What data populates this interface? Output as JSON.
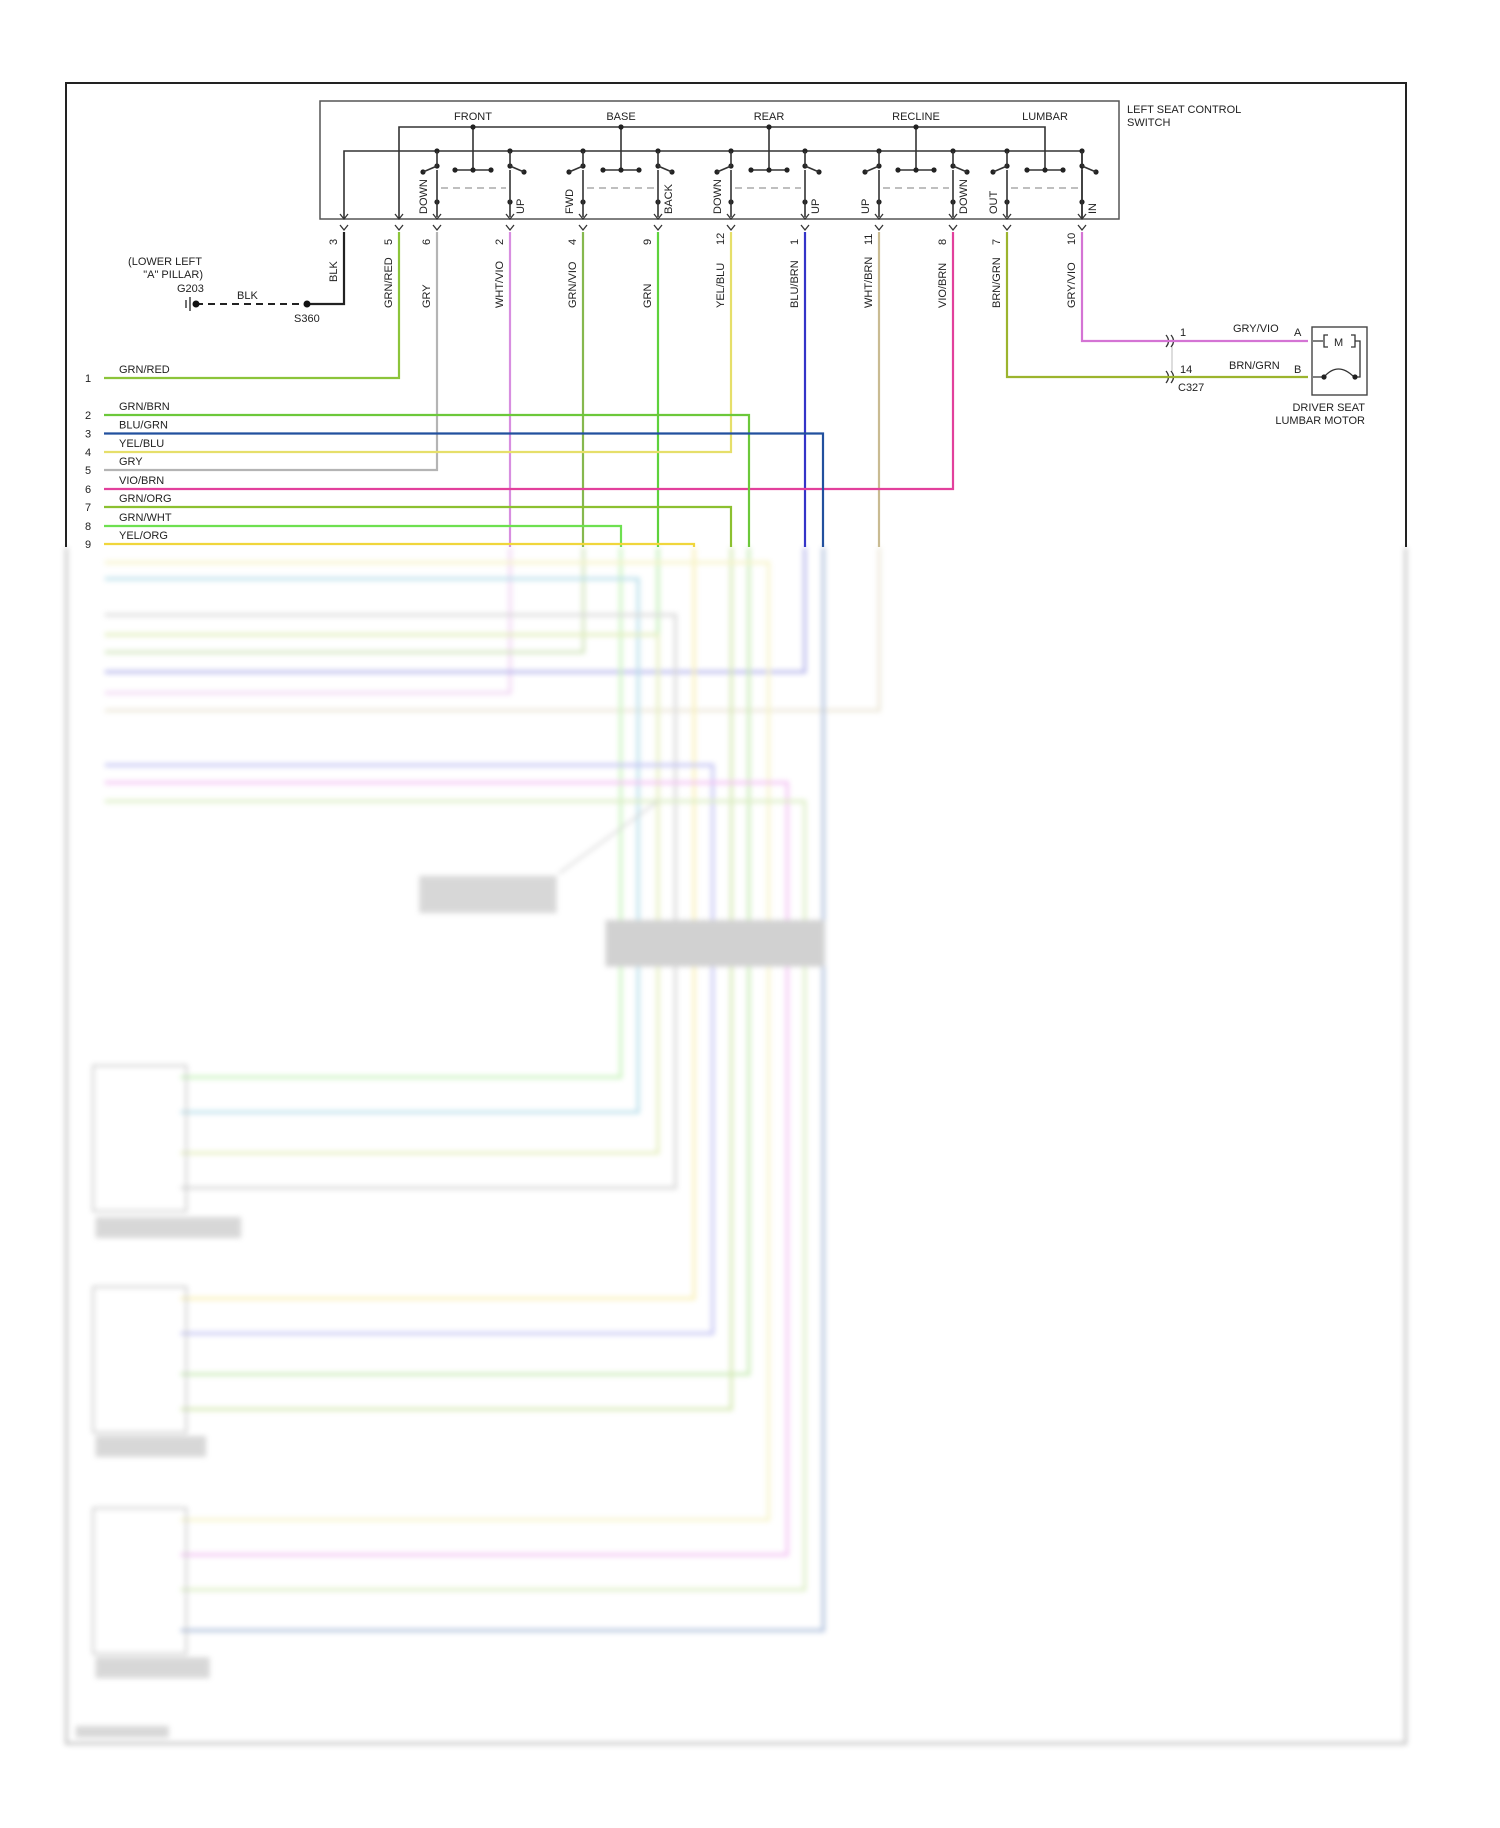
{
  "switch": {
    "title_line1": "LEFT SEAT CONTROL",
    "title_line2": "SWITCH",
    "sections": [
      "FRONT",
      "BASE",
      "REAR",
      "RECLINE",
      "LUMBAR"
    ],
    "directions": [
      "DOWN",
      "UP",
      "FWD",
      "BACK",
      "DOWN",
      "UP",
      "UP",
      "DOWN",
      "OUT",
      "IN"
    ]
  },
  "pins": [
    {
      "pin": "3",
      "wire": "BLK",
      "color": "#222222"
    },
    {
      "pin": "5",
      "wire": "GRN/RED",
      "color": "#8cc43a"
    },
    {
      "pin": "6",
      "wire": "GRY",
      "color": "#b4b4b4"
    },
    {
      "pin": "2",
      "wire": "WHT/VIO",
      "color": "#d88ee0"
    },
    {
      "pin": "4",
      "wire": "GRN/VIO",
      "color": "#86b84e"
    },
    {
      "pin": "9",
      "wire": "GRN",
      "color": "#5ed23c"
    },
    {
      "pin": "12",
      "wire": "YEL/BLU",
      "color": "#e6df6a"
    },
    {
      "pin": "1",
      "wire": "BLU/BRN",
      "color": "#3434c8"
    },
    {
      "pin": "11",
      "wire": "WHT/BRN",
      "color": "#c9bb92"
    },
    {
      "pin": "8",
      "wire": "VIO/BRN",
      "color": "#e2409c"
    },
    {
      "pin": "7",
      "wire": "BRN/GRN",
      "color": "#9cb42e"
    },
    {
      "pin": "10",
      "wire": "GRY/VIO",
      "color": "#d474d4"
    }
  ],
  "ground": {
    "location_line1": "(LOWER LEFT",
    "location_line2": "\"A\" PILLAR)",
    "ground_id": "G203",
    "wire": "BLK",
    "splice": "S360"
  },
  "rows": [
    {
      "num": "1",
      "wire": "GRN/RED",
      "color": "#8cc43a"
    },
    {
      "num": "2",
      "wire": "GRN/BRN",
      "color": "#6cc83a"
    },
    {
      "num": "3",
      "wire": "BLU/GRN",
      "color": "#22509e"
    },
    {
      "num": "4",
      "wire": "YEL/BLU",
      "color": "#e6df6a"
    },
    {
      "num": "5",
      "wire": "GRY",
      "color": "#b4b4b4"
    },
    {
      "num": "6",
      "wire": "VIO/BRN",
      "color": "#e2409c"
    },
    {
      "num": "7",
      "wire": "GRN/ORG",
      "color": "#8cc030"
    },
    {
      "num": "8",
      "wire": "GRN/WHT",
      "color": "#6ee050"
    },
    {
      "num": "9",
      "wire": "YEL/ORG",
      "color": "#f0d63c"
    }
  ],
  "lumbar": {
    "connector": "C327",
    "pin_a_cavity": "1",
    "pin_b_cavity": "14",
    "wire_a": "GRY/VIO",
    "wire_b": "BRN/GRN",
    "term_a": "A",
    "term_b": "B",
    "motor_symbol": "M",
    "name_line1": "DRIVER SEAT",
    "name_line2": "LUMBAR MOTOR"
  }
}
